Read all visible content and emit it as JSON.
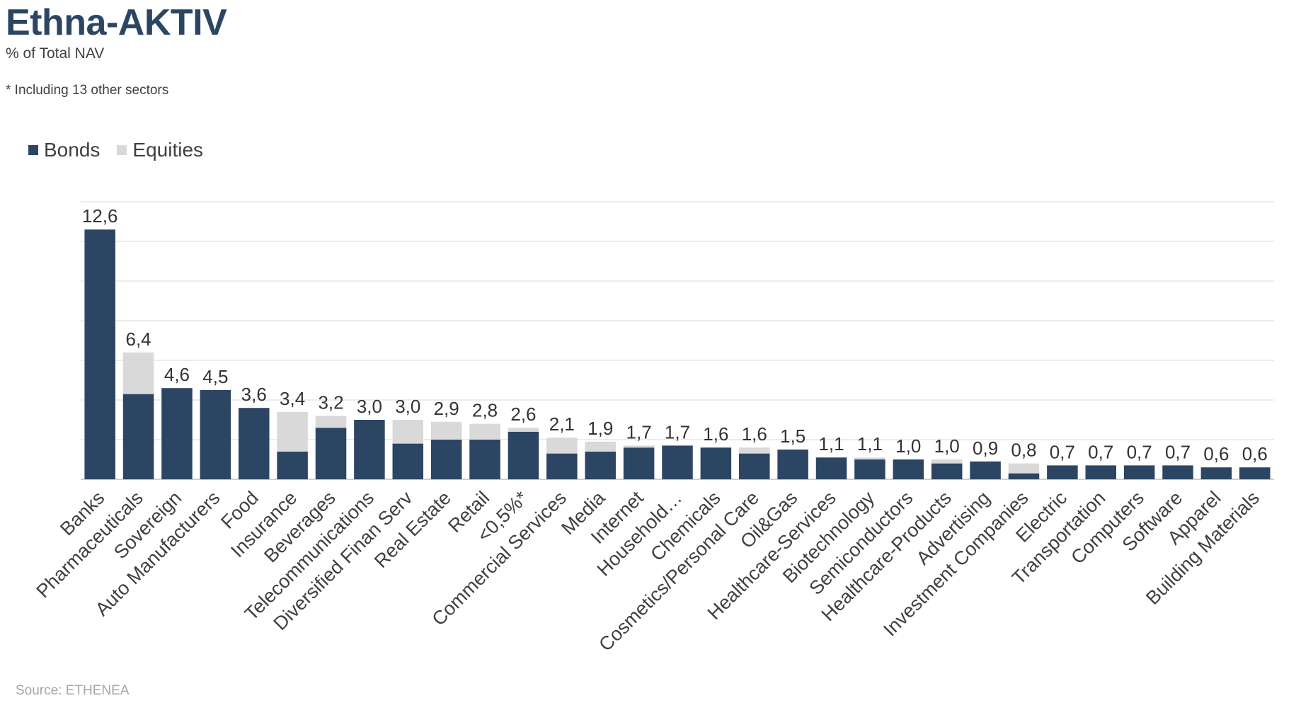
{
  "title": "Ethna-AKTIV",
  "subtitle": "% of Total NAV",
  "note": "* Including 13 other sectors",
  "source": "Source: ETHENEA",
  "colors": {
    "bonds": "#2c4563",
    "equities": "#d9d9d9",
    "grid": "#d9d9d9",
    "title": "#2c4563"
  },
  "chart_data": {
    "type": "bar",
    "stacked": true,
    "grid": true,
    "legend_position": "top-left",
    "ylim": [
      0,
      14
    ],
    "categories": [
      "Banks",
      "Pharmaceuticals",
      "Sovereign",
      "Auto Manufacturers",
      "Food",
      "Insurance",
      "Beverages",
      "Telecommunications",
      "Diversified Finan Serv",
      "Real Estate",
      "Retail",
      "<0,5%*",
      "Commercial Services",
      "Media",
      "Internet",
      "Household…",
      "Chemicals",
      "Cosmetics/Personal Care",
      "Oil&Gas",
      "Healthcare-Services",
      "Biotechnology",
      "Semiconductors",
      "Healthcare-Products",
      "Advertising",
      "Investment Companies",
      "Electric",
      "Transportation",
      "Computers",
      "Software",
      "Apparel",
      "Building Materials"
    ],
    "totals_labels": [
      "12,6",
      "6,4",
      "4,6",
      "4,5",
      "3,6",
      "3,4",
      "3,2",
      "3,0",
      "3,0",
      "2,9",
      "2,8",
      "2,6",
      "2,1",
      "1,9",
      "1,7",
      "1,7",
      "1,6",
      "1,6",
      "1,5",
      "1,1",
      "1,1",
      "1,0",
      "1,0",
      "0,9",
      "0,8",
      "0,7",
      "0,7",
      "0,7",
      "0,7",
      "0,6",
      "0,6"
    ],
    "series": [
      {
        "name": "Bonds",
        "values": [
          12.6,
          4.3,
          4.6,
          4.5,
          3.6,
          1.4,
          2.6,
          3.0,
          1.8,
          2.0,
          2.0,
          2.4,
          1.3,
          1.4,
          1.6,
          1.7,
          1.6,
          1.3,
          1.5,
          1.1,
          1.0,
          1.0,
          0.8,
          0.9,
          0.3,
          0.7,
          0.7,
          0.7,
          0.7,
          0.6,
          0.6
        ]
      },
      {
        "name": "Equities",
        "values": [
          0.0,
          2.1,
          0.0,
          0.0,
          0.0,
          2.0,
          0.6,
          0.0,
          1.2,
          0.9,
          0.8,
          0.2,
          0.8,
          0.5,
          0.1,
          0.0,
          0.0,
          0.3,
          0.0,
          0.0,
          0.1,
          0.0,
          0.2,
          0.0,
          0.5,
          0.0,
          0.0,
          0.0,
          0.0,
          0.0,
          0.0
        ]
      }
    ]
  }
}
